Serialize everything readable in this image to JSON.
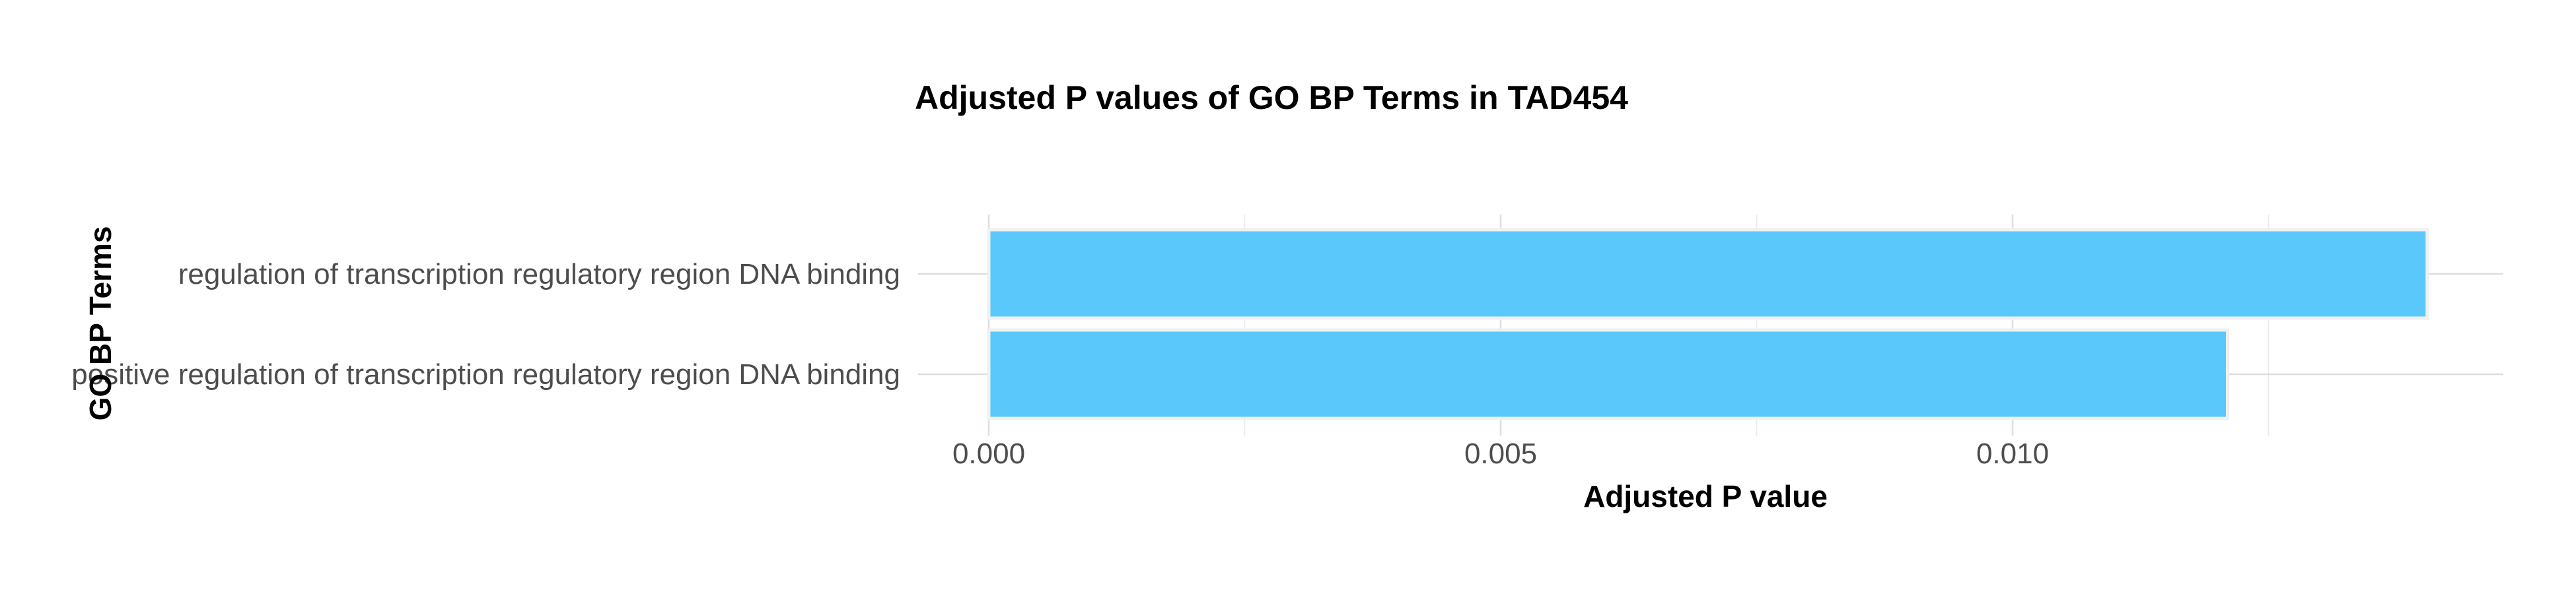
{
  "chart_data": {
    "type": "bar",
    "orientation": "horizontal",
    "title": "Adjusted P values of GO BP Terms in TAD454",
    "xlabel": "Adjusted P value",
    "ylabel": "GO BP Terms",
    "categories": [
      "regulation of transcription regulatory region DNA binding",
      "positive regulation of transcription regulatory region DNA binding"
    ],
    "values": [
      0.01405,
      0.0121
    ],
    "xlim": [
      0,
      0.0148
    ],
    "xticks": [
      0.0,
      0.005,
      0.01
    ],
    "xtick_labels": [
      "0.000",
      "0.005",
      "0.010"
    ],
    "bar_color": "#5bc8fb",
    "grid": true,
    "legend": "none"
  }
}
